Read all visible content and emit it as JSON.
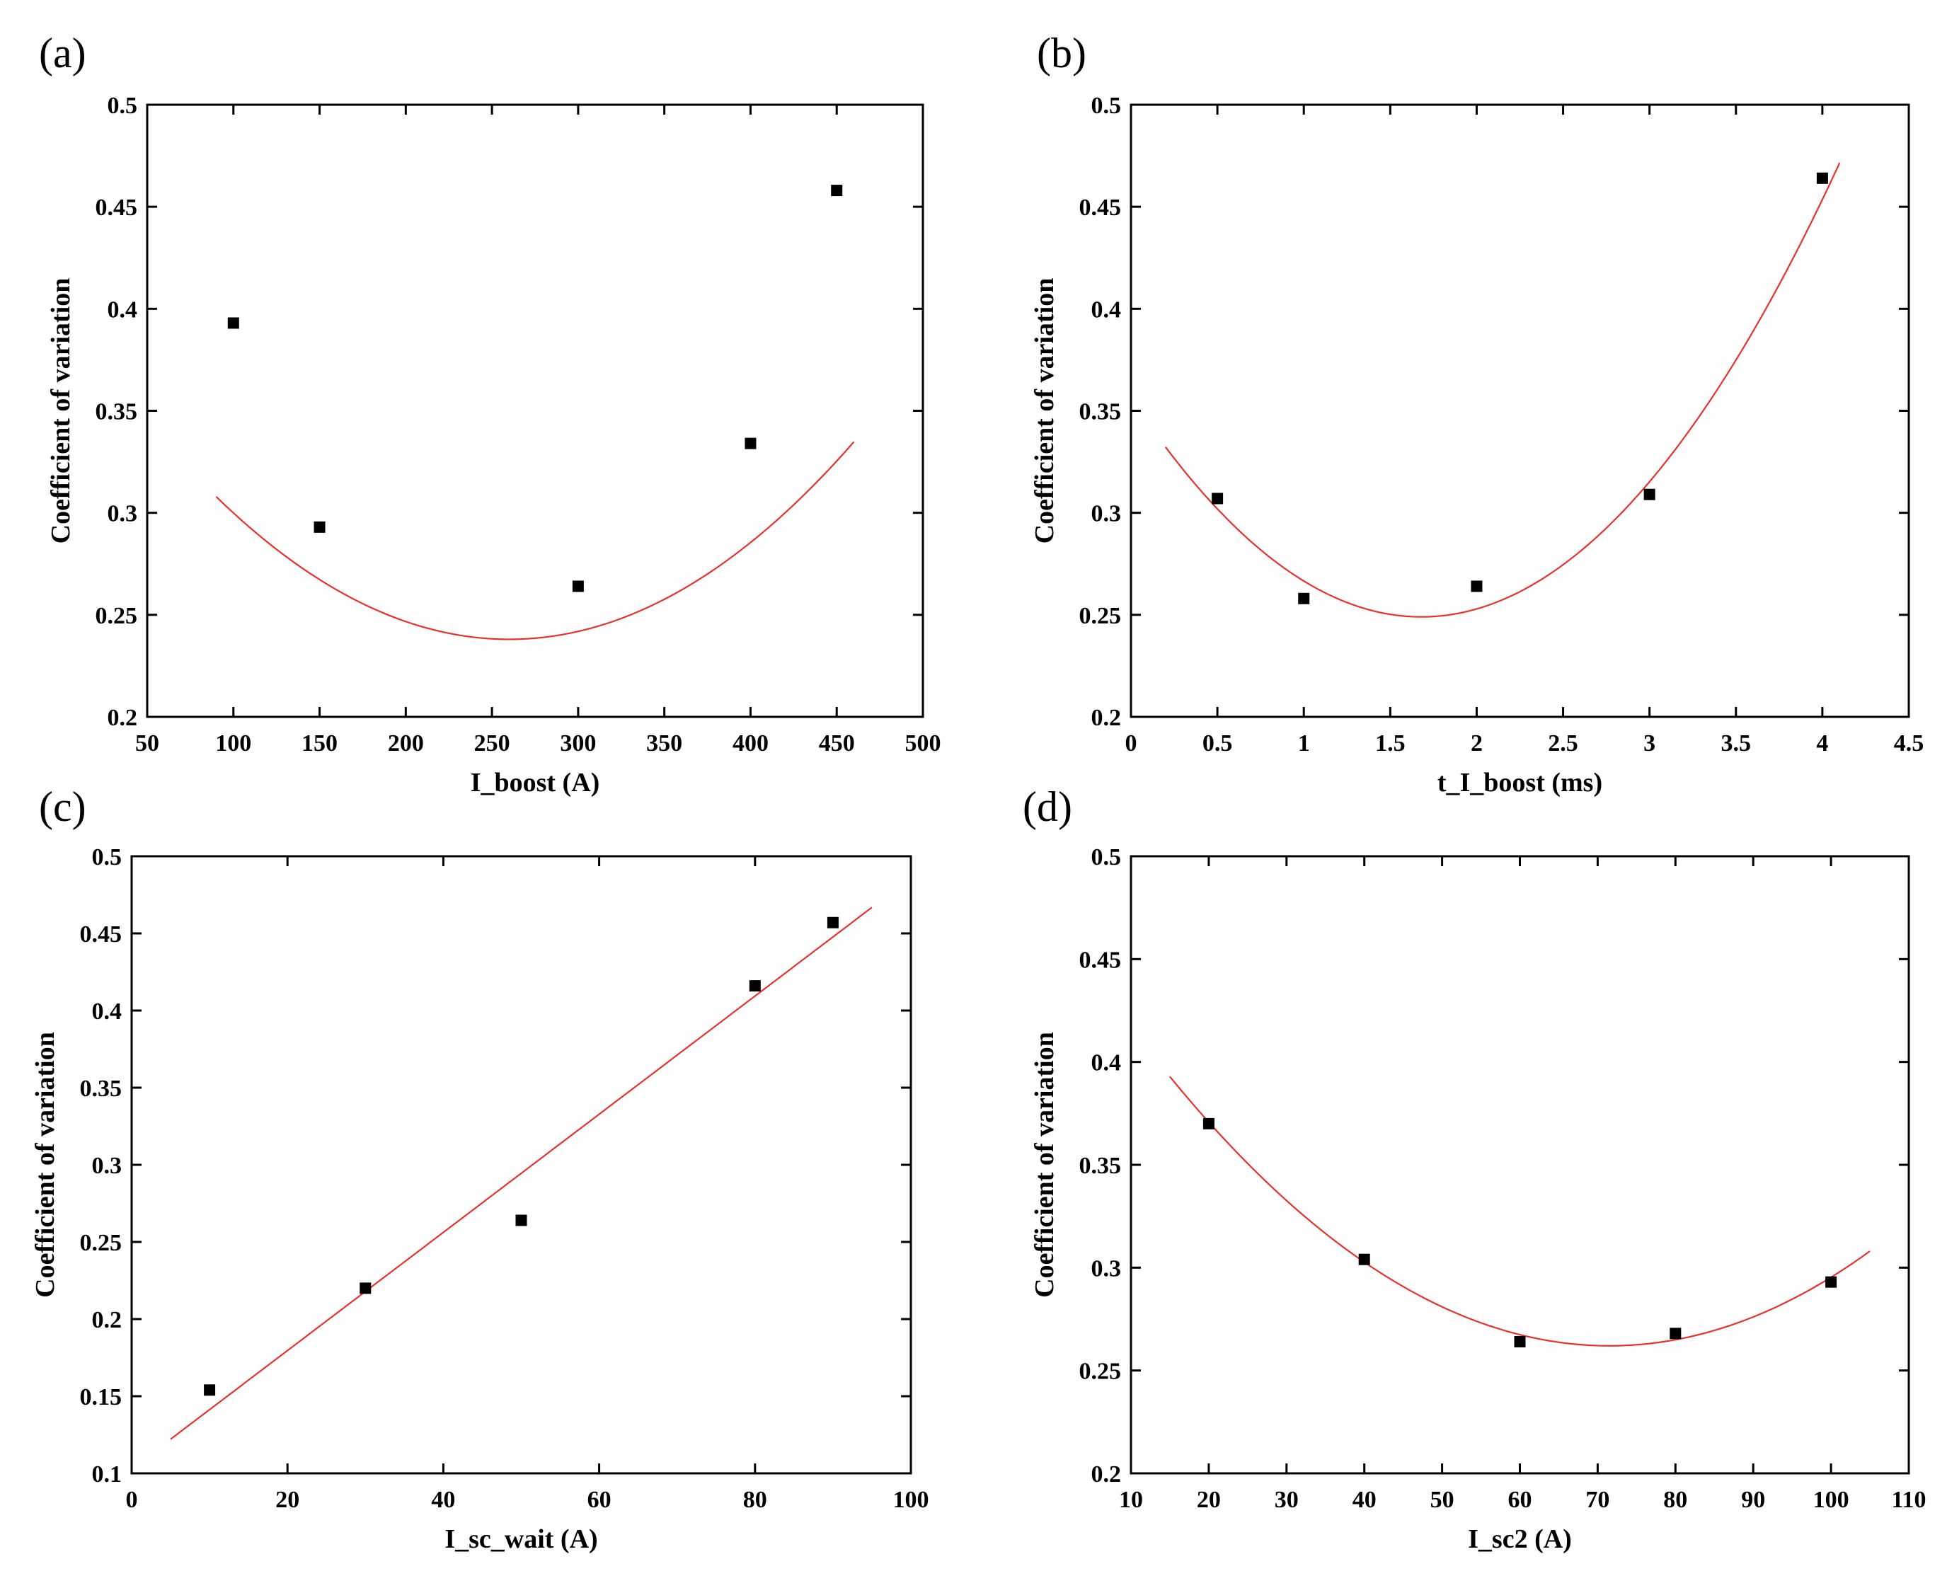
{
  "colors": {
    "fit_line": "#e8312a",
    "marker": "#000000",
    "axis": "#000000"
  },
  "chart_data": [
    {
      "type": "scatter",
      "panel": "(a)",
      "xlabel": "I_boost (A)",
      "ylabel": "Coefficient of variation",
      "xlim": [
        50,
        500
      ],
      "ylim": [
        0.2,
        0.5
      ],
      "xticks": [
        50,
        100,
        150,
        200,
        250,
        300,
        350,
        400,
        450,
        500
      ],
      "xtick_labels": [
        "50",
        "100",
        "150",
        "200",
        "250",
        "300",
        "350",
        "400",
        "450",
        "500"
      ],
      "yticks": [
        0.2,
        0.25,
        0.3,
        0.35,
        0.4,
        0.45,
        0.5
      ],
      "ytick_labels": [
        "0.2",
        "0.25",
        "0.3",
        "0.35",
        "0.4",
        "0.45",
        "0.5"
      ],
      "points": {
        "x": [
          100,
          150,
          300,
          400,
          450
        ],
        "y": [
          0.393,
          0.293,
          0.264,
          0.334,
          0.458
        ]
      },
      "fit": {
        "model": "quadratic",
        "x_range": [
          90,
          460
        ],
        "vertex_x": 260,
        "vertex_y": 0.238,
        "a": 2.42e-06
      }
    },
    {
      "type": "scatter",
      "panel": "(b)",
      "xlabel": "t_I_boost (ms)",
      "ylabel": "Coefficient of variation",
      "xlim": [
        0,
        4.5
      ],
      "ylim": [
        0.2,
        0.5
      ],
      "xticks": [
        0,
        0.5,
        1,
        1.5,
        2,
        2.5,
        3,
        3.5,
        4,
        4.5
      ],
      "xtick_labels": [
        "0",
        "0.5",
        "1",
        "1.5",
        "2",
        "2.5",
        "3",
        "3.5",
        "4",
        "4.5"
      ],
      "yticks": [
        0.2,
        0.25,
        0.3,
        0.35,
        0.4,
        0.45,
        0.5
      ],
      "ytick_labels": [
        "0.2",
        "0.25",
        "0.3",
        "0.35",
        "0.4",
        "0.45",
        "0.5"
      ],
      "points": {
        "x": [
          0.5,
          1,
          2,
          3,
          4
        ],
        "y": [
          0.307,
          0.258,
          0.264,
          0.309,
          0.464
        ]
      },
      "fit": {
        "model": "quadratic",
        "x_range": [
          0.2,
          4.1
        ],
        "vertex_x": 1.68,
        "vertex_y": 0.249,
        "a": 0.038
      }
    },
    {
      "type": "scatter",
      "panel": "(c)",
      "xlabel": "I_sc_wait (A)",
      "ylabel": "Coefficient of variation",
      "xlim": [
        0,
        100
      ],
      "ylim": [
        0.1,
        0.5
      ],
      "xticks": [
        0,
        20,
        40,
        60,
        80,
        100
      ],
      "xtick_labels": [
        "0",
        "20",
        "40",
        "60",
        "80",
        "100"
      ],
      "yticks": [
        0.1,
        0.15,
        0.2,
        0.25,
        0.3,
        0.35,
        0.4,
        0.45,
        0.5
      ],
      "ytick_labels": [
        "0.1",
        "0.15",
        "0.2",
        "0.25",
        "0.3",
        "0.35",
        "0.4",
        "0.45",
        "0.5"
      ],
      "points": {
        "x": [
          10,
          30,
          50,
          80,
          90
        ],
        "y": [
          0.154,
          0.22,
          0.264,
          0.416,
          0.457
        ]
      },
      "fit": {
        "model": "linear",
        "x_range": [
          5,
          95
        ],
        "slope": 0.00383,
        "intercept": 0.103
      }
    },
    {
      "type": "scatter",
      "panel": "(d)",
      "xlabel": "I_sc2 (A)",
      "ylabel": "Coefficient of variation",
      "xlim": [
        10,
        110
      ],
      "ylim": [
        0.2,
        0.5
      ],
      "xticks": [
        10,
        20,
        30,
        40,
        50,
        60,
        70,
        80,
        90,
        100,
        110
      ],
      "xtick_labels": [
        "10",
        "20",
        "30",
        "40",
        "50",
        "60",
        "70",
        "80",
        "90",
        "100",
        "110"
      ],
      "yticks": [
        0.2,
        0.25,
        0.3,
        0.35,
        0.4,
        0.45,
        0.5
      ],
      "ytick_labels": [
        "0.2",
        "0.25",
        "0.3",
        "0.35",
        "0.4",
        "0.45",
        "0.5"
      ],
      "points": {
        "x": [
          20,
          40,
          60,
          80,
          100
        ],
        "y": [
          0.37,
          0.304,
          0.264,
          0.268,
          0.293
        ]
      },
      "fit": {
        "model": "quadratic",
        "x_range": [
          15,
          105
        ],
        "vertex_x": 71.5,
        "vertex_y": 0.262,
        "a": 4.1e-05
      }
    }
  ]
}
